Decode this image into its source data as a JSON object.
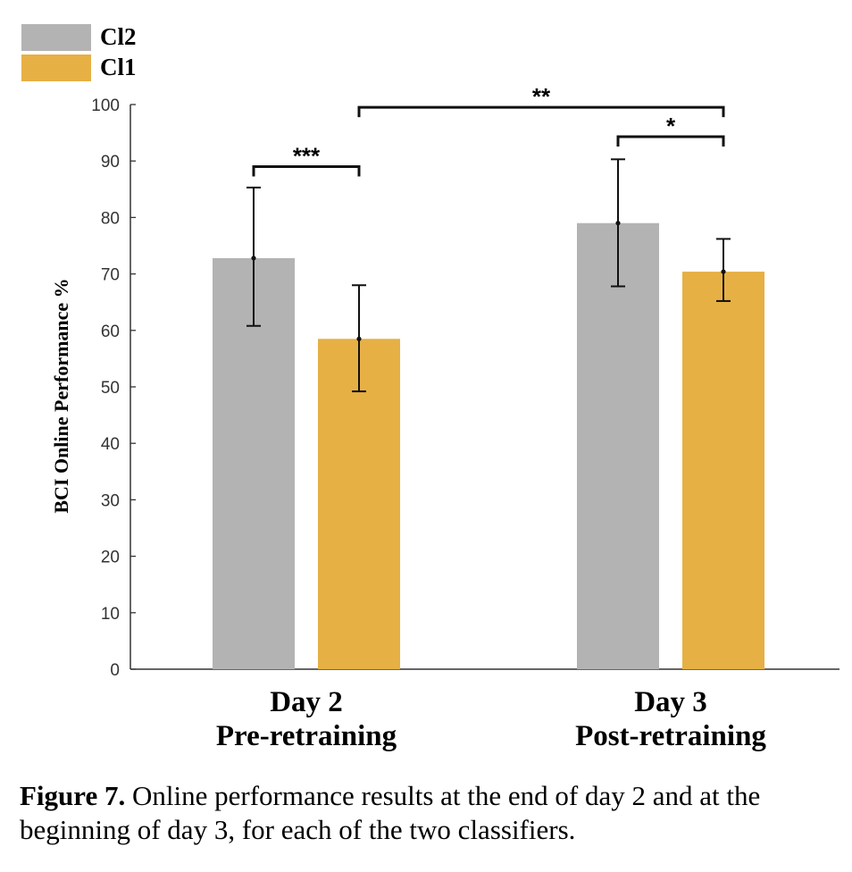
{
  "chart_data": {
    "type": "bar",
    "ylabel": "BCI Online Performance %",
    "ylim": [
      0,
      100
    ],
    "yticks": [
      0,
      10,
      20,
      30,
      40,
      50,
      60,
      70,
      80,
      90,
      100
    ],
    "categories": [
      {
        "line1": "Day 2",
        "line2": "Pre-retraining"
      },
      {
        "line1": "Day 3",
        "line2": "Post-retraining"
      }
    ],
    "series": [
      {
        "name": "Cl2",
        "color": "#b3b3b3",
        "values": [
          72.8,
          79.0
        ],
        "error_low": [
          60.8,
          67.8
        ],
        "error_high": [
          85.3,
          90.3
        ]
      },
      {
        "name": "Cl1",
        "color": "#e6b044",
        "values": [
          58.5,
          70.4
        ],
        "error_low": [
          49.2,
          65.2
        ],
        "error_high": [
          68.0,
          76.2
        ]
      }
    ],
    "legend_position": "top-left",
    "grid": false,
    "significance": [
      {
        "label": "***",
        "from": {
          "series": 0,
          "category": 0
        },
        "to": {
          "series": 1,
          "category": 0
        },
        "y": 89
      },
      {
        "label": "*",
        "from": {
          "series": 0,
          "category": 1
        },
        "to": {
          "series": 1,
          "category": 1
        },
        "y": 94.3
      },
      {
        "label": "**",
        "from": {
          "series": 1,
          "category": 0
        },
        "to": {
          "series": 1,
          "category": 1
        },
        "y": 99.5
      }
    ]
  },
  "caption": {
    "label": "Figure 7.",
    "text": " Online performance results at the end of day 2 and at the beginning of day 3, for each of the two classifiers."
  }
}
